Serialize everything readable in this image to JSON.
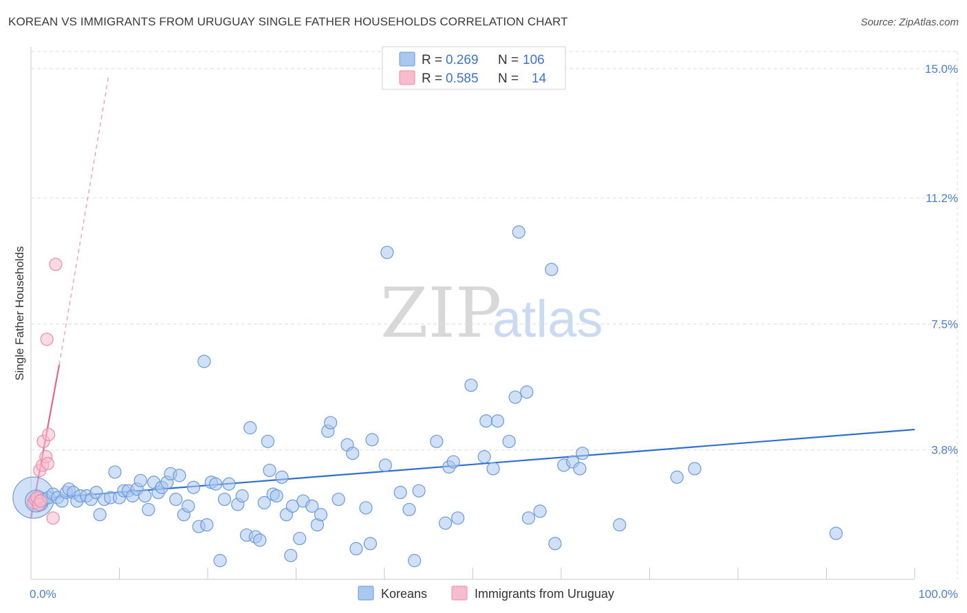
{
  "header": {
    "title": "KOREAN VS IMMIGRANTS FROM URUGUAY SINGLE FATHER HOUSEHOLDS CORRELATION CHART",
    "source": "Source: ZipAtlas.com"
  },
  "watermark": {
    "zip": "ZIP",
    "atlas": "atlas"
  },
  "colors": {
    "koreans_fill": "#a9c7ef",
    "koreans_stroke": "#6a9ad8",
    "koreans_line": "#2f6fd0",
    "uruguay_fill": "#f7bccd",
    "uruguay_stroke": "#ec8aa6",
    "uruguay_line": "#e8608c",
    "grid": "#dcdcdc",
    "tick_text": "#4a7fd0"
  },
  "legend": {
    "rows": [
      {
        "r_label": "R =",
        "r_value": "0.269",
        "n_label": "N =",
        "n_value": "106"
      },
      {
        "r_label": "R =",
        "r_value": "0.585",
        "n_label": "N =",
        "n_value": "14"
      }
    ]
  },
  "chart_data": {
    "type": "scatter",
    "title": "KOREAN VS IMMIGRANTS FROM URUGUAY SINGLE FATHER HOUSEHOLDS CORRELATION CHART",
    "xlabel": "",
    "ylabel": "Single Father Households",
    "xlim": [
      0,
      100
    ],
    "ylim": [
      0,
      15.5
    ],
    "x_tick_labels": [
      "0.0%",
      "100.0%"
    ],
    "y_ticks": [
      3.8,
      7.5,
      11.2,
      15.0
    ],
    "y_tick_labels": [
      "3.8%",
      "7.5%",
      "11.2%",
      "15.0%"
    ],
    "grid": true,
    "legend_position": "top-center",
    "series": [
      {
        "name": "Koreans",
        "trend": {
          "x": [
            0,
            100
          ],
          "y": [
            2.35,
            4.4
          ],
          "style": "solid"
        },
        "points": [
          {
            "x": 0.3,
            "y": 2.4,
            "s": 30
          },
          {
            "x": 0.6,
            "y": 2.3,
            "s": 16
          },
          {
            "x": 1.0,
            "y": 2.25,
            "s": 12
          },
          {
            "x": 1.5,
            "y": 2.35,
            "s": 9
          },
          {
            "x": 2.0,
            "y": 2.4,
            "s": 9
          },
          {
            "x": 2.5,
            "y": 2.5,
            "s": 9
          },
          {
            "x": 3.0,
            "y": 2.4,
            "s": 9
          },
          {
            "x": 3.5,
            "y": 2.3,
            "s": 9
          },
          {
            "x": 4.0,
            "y": 2.55,
            "s": 9
          },
          {
            "x": 4.3,
            "y": 2.65,
            "s": 9
          },
          {
            "x": 4.8,
            "y": 2.55,
            "s": 9
          },
          {
            "x": 5.2,
            "y": 2.3,
            "s": 9
          },
          {
            "x": 5.6,
            "y": 2.45,
            "s": 9
          },
          {
            "x": 6.3,
            "y": 2.45,
            "s": 9
          },
          {
            "x": 6.8,
            "y": 2.35,
            "s": 9
          },
          {
            "x": 7.4,
            "y": 2.55,
            "s": 9
          },
          {
            "x": 7.8,
            "y": 1.9,
            "s": 9
          },
          {
            "x": 8.3,
            "y": 2.35,
            "s": 9
          },
          {
            "x": 9.0,
            "y": 2.4,
            "s": 9
          },
          {
            "x": 9.5,
            "y": 3.15,
            "s": 9
          },
          {
            "x": 10.0,
            "y": 2.4,
            "s": 9
          },
          {
            "x": 10.5,
            "y": 2.6,
            "s": 9
          },
          {
            "x": 11.0,
            "y": 2.6,
            "s": 9
          },
          {
            "x": 11.5,
            "y": 2.45,
            "s": 9
          },
          {
            "x": 12.0,
            "y": 2.65,
            "s": 9
          },
          {
            "x": 12.4,
            "y": 2.9,
            "s": 9
          },
          {
            "x": 12.9,
            "y": 2.45,
            "s": 9
          },
          {
            "x": 13.3,
            "y": 2.05,
            "s": 9
          },
          {
            "x": 13.9,
            "y": 2.85,
            "s": 9
          },
          {
            "x": 14.4,
            "y": 2.55,
            "s": 9
          },
          {
            "x": 14.8,
            "y": 2.7,
            "s": 9
          },
          {
            "x": 15.4,
            "y": 2.85,
            "s": 9
          },
          {
            "x": 15.8,
            "y": 3.1,
            "s": 9
          },
          {
            "x": 16.4,
            "y": 2.35,
            "s": 9
          },
          {
            "x": 16.8,
            "y": 3.05,
            "s": 9
          },
          {
            "x": 17.3,
            "y": 1.9,
            "s": 9
          },
          {
            "x": 17.8,
            "y": 2.15,
            "s": 9
          },
          {
            "x": 18.4,
            "y": 2.7,
            "s": 9
          },
          {
            "x": 19.0,
            "y": 1.55,
            "s": 9
          },
          {
            "x": 19.6,
            "y": 6.4,
            "s": 9
          },
          {
            "x": 19.9,
            "y": 1.6,
            "s": 9
          },
          {
            "x": 20.4,
            "y": 2.85,
            "s": 9
          },
          {
            "x": 20.9,
            "y": 2.8,
            "s": 9
          },
          {
            "x": 21.4,
            "y": 0.55,
            "s": 9
          },
          {
            "x": 21.9,
            "y": 2.35,
            "s": 9
          },
          {
            "x": 22.4,
            "y": 2.8,
            "s": 9
          },
          {
            "x": 23.4,
            "y": 2.2,
            "s": 9
          },
          {
            "x": 23.9,
            "y": 2.45,
            "s": 9
          },
          {
            "x": 24.4,
            "y": 1.3,
            "s": 9
          },
          {
            "x": 24.8,
            "y": 4.45,
            "s": 9
          },
          {
            "x": 25.4,
            "y": 1.25,
            "s": 9
          },
          {
            "x": 25.9,
            "y": 1.15,
            "s": 9
          },
          {
            "x": 26.4,
            "y": 2.25,
            "s": 9
          },
          {
            "x": 26.8,
            "y": 4.05,
            "s": 9
          },
          {
            "x": 27.0,
            "y": 3.2,
            "s": 9
          },
          {
            "x": 27.4,
            "y": 2.5,
            "s": 9
          },
          {
            "x": 27.8,
            "y": 2.45,
            "s": 9
          },
          {
            "x": 28.4,
            "y": 3.0,
            "s": 9
          },
          {
            "x": 28.9,
            "y": 1.9,
            "s": 9
          },
          {
            "x": 29.4,
            "y": 0.7,
            "s": 9
          },
          {
            "x": 29.6,
            "y": 2.15,
            "s": 9
          },
          {
            "x": 30.4,
            "y": 1.2,
            "s": 9
          },
          {
            "x": 30.8,
            "y": 2.3,
            "s": 9
          },
          {
            "x": 31.8,
            "y": 2.15,
            "s": 9
          },
          {
            "x": 32.4,
            "y": 1.6,
            "s": 9
          },
          {
            "x": 32.8,
            "y": 1.9,
            "s": 9
          },
          {
            "x": 33.6,
            "y": 4.35,
            "s": 9
          },
          {
            "x": 33.9,
            "y": 4.6,
            "s": 9
          },
          {
            "x": 34.8,
            "y": 2.35,
            "s": 9
          },
          {
            "x": 35.8,
            "y": 3.95,
            "s": 9
          },
          {
            "x": 36.4,
            "y": 3.7,
            "s": 9
          },
          {
            "x": 36.8,
            "y": 0.9,
            "s": 9
          },
          {
            "x": 37.9,
            "y": 2.1,
            "s": 9
          },
          {
            "x": 38.4,
            "y": 1.05,
            "s": 9
          },
          {
            "x": 38.6,
            "y": 4.1,
            "s": 9
          },
          {
            "x": 40.3,
            "y": 9.6,
            "s": 9
          },
          {
            "x": 40.1,
            "y": 3.35,
            "s": 9
          },
          {
            "x": 41.8,
            "y": 2.55,
            "s": 9
          },
          {
            "x": 42.8,
            "y": 2.05,
            "s": 9
          },
          {
            "x": 43.4,
            "y": 0.55,
            "s": 9
          },
          {
            "x": 43.9,
            "y": 2.6,
            "s": 9
          },
          {
            "x": 45.9,
            "y": 4.05,
            "s": 9
          },
          {
            "x": 46.9,
            "y": 1.65,
            "s": 9
          },
          {
            "x": 47.3,
            "y": 3.3,
            "s": 9
          },
          {
            "x": 47.8,
            "y": 3.45,
            "s": 9
          },
          {
            "x": 48.3,
            "y": 1.8,
            "s": 9
          },
          {
            "x": 49.8,
            "y": 5.7,
            "s": 9
          },
          {
            "x": 51.3,
            "y": 3.6,
            "s": 9
          },
          {
            "x": 51.5,
            "y": 4.65,
            "s": 9
          },
          {
            "x": 52.3,
            "y": 3.25,
            "s": 9
          },
          {
            "x": 52.8,
            "y": 4.65,
            "s": 9
          },
          {
            "x": 54.1,
            "y": 4.05,
            "s": 9
          },
          {
            "x": 54.8,
            "y": 5.35,
            "s": 9
          },
          {
            "x": 55.2,
            "y": 10.2,
            "s": 9
          },
          {
            "x": 56.1,
            "y": 5.5,
            "s": 9
          },
          {
            "x": 56.3,
            "y": 1.8,
            "s": 9
          },
          {
            "x": 57.6,
            "y": 2.0,
            "s": 9
          },
          {
            "x": 58.9,
            "y": 9.1,
            "s": 9
          },
          {
            "x": 59.3,
            "y": 1.05,
            "s": 9
          },
          {
            "x": 60.3,
            "y": 3.35,
            "s": 9
          },
          {
            "x": 61.3,
            "y": 3.45,
            "s": 9
          },
          {
            "x": 62.1,
            "y": 3.25,
            "s": 9
          },
          {
            "x": 62.4,
            "y": 3.7,
            "s": 9
          },
          {
            "x": 66.6,
            "y": 1.6,
            "s": 9
          },
          {
            "x": 73.1,
            "y": 3.0,
            "s": 9
          },
          {
            "x": 75.1,
            "y": 3.25,
            "s": 9
          },
          {
            "x": 91.1,
            "y": 1.35,
            "s": 9
          }
        ]
      },
      {
        "name": "Immigrants from Uruguay",
        "trend": {
          "x": [
            0,
            3.2,
            8.8
          ],
          "y": [
            1.8,
            6.3,
            14.8
          ],
          "style": "solid-then-dashed"
        },
        "points": [
          {
            "x": 0.3,
            "y": 2.25,
            "s": 9
          },
          {
            "x": 0.5,
            "y": 2.35,
            "s": 9
          },
          {
            "x": 0.7,
            "y": 2.4,
            "s": 9
          },
          {
            "x": 0.9,
            "y": 2.2,
            "s": 9
          },
          {
            "x": 1.1,
            "y": 2.3,
            "s": 9
          },
          {
            "x": 1.0,
            "y": 3.2,
            "s": 9
          },
          {
            "x": 1.3,
            "y": 3.35,
            "s": 9
          },
          {
            "x": 1.4,
            "y": 4.05,
            "s": 9
          },
          {
            "x": 1.7,
            "y": 3.6,
            "s": 9
          },
          {
            "x": 1.9,
            "y": 3.4,
            "s": 9
          },
          {
            "x": 2.0,
            "y": 4.25,
            "s": 9
          },
          {
            "x": 2.5,
            "y": 1.8,
            "s": 9
          },
          {
            "x": 1.8,
            "y": 7.05,
            "s": 9
          },
          {
            "x": 2.8,
            "y": 9.25,
            "s": 9
          }
        ]
      }
    ]
  }
}
